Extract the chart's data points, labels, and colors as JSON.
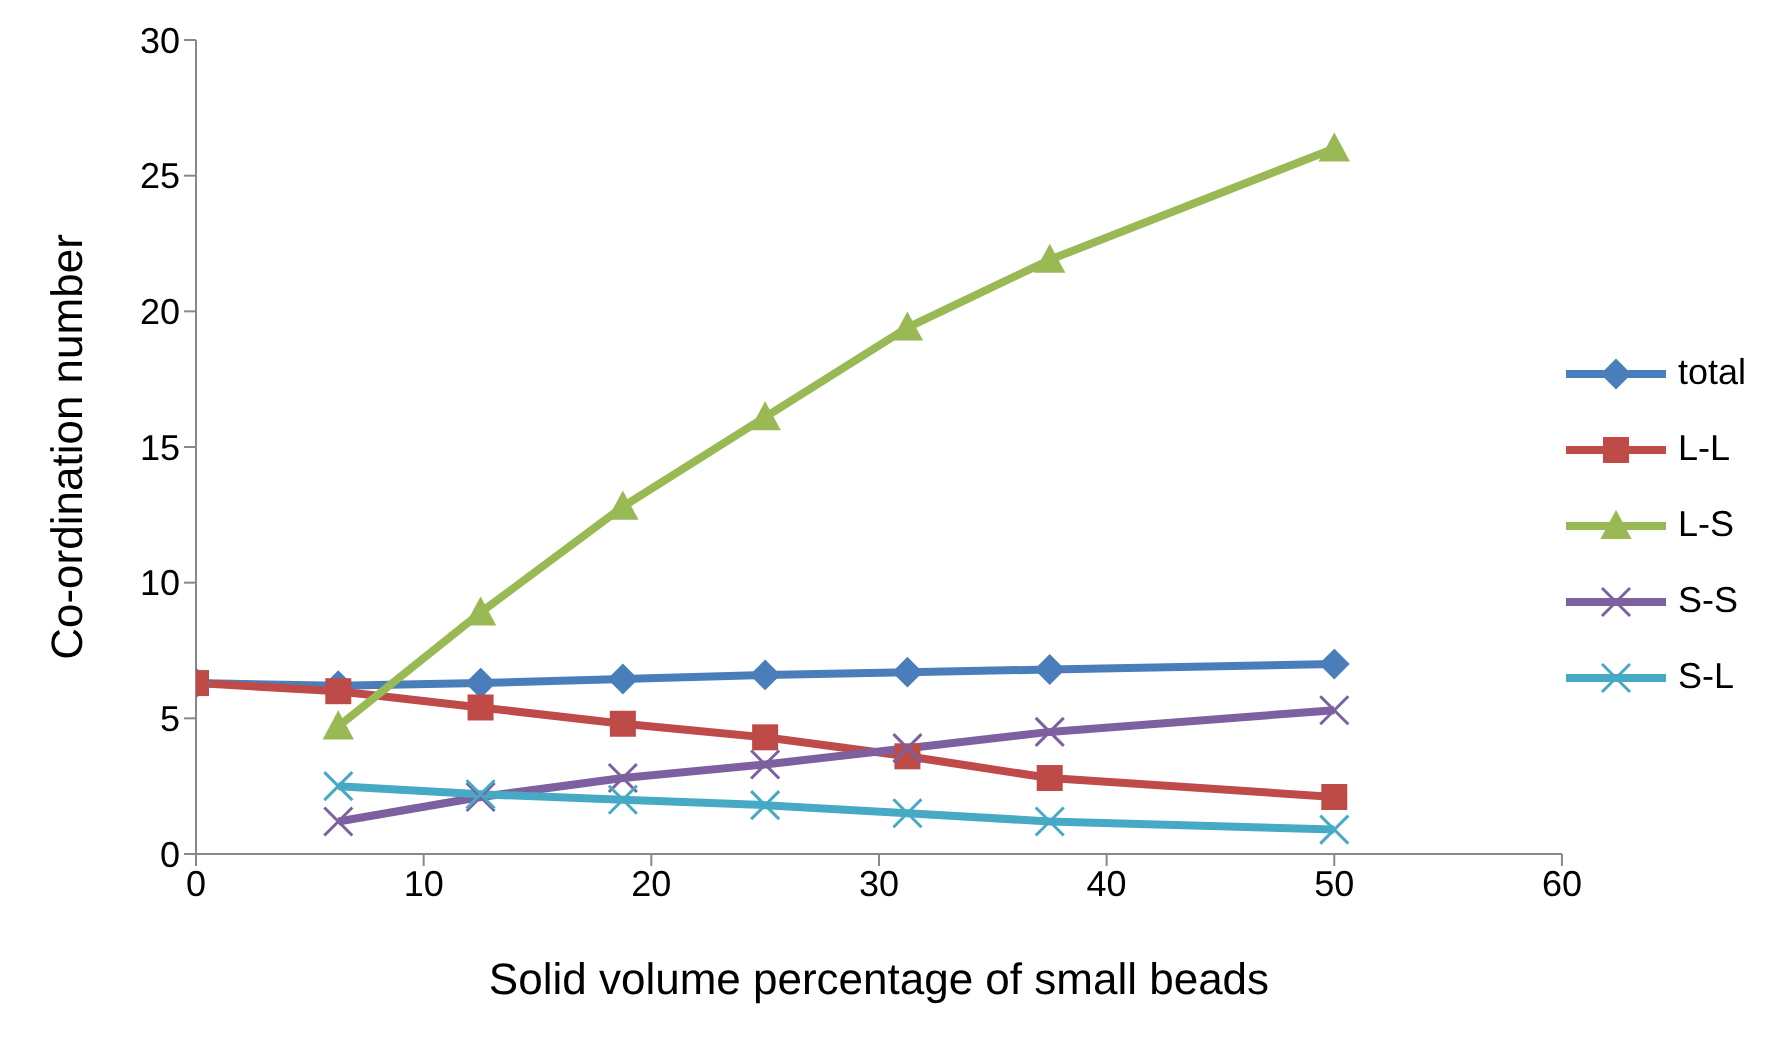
{
  "chart_data": {
    "type": "line",
    "xlabel": "Solid volume percentage of small beads",
    "ylabel": "Co-ordination number",
    "x": [
      0,
      6.25,
      12.5,
      18.75,
      25,
      31.25,
      37.5,
      50
    ],
    "xlim": [
      0,
      60
    ],
    "xticks": [
      0,
      10,
      20,
      30,
      40,
      50,
      60
    ],
    "ylim": [
      0,
      30
    ],
    "yticks": [
      0,
      5,
      10,
      15,
      20,
      25,
      30
    ],
    "grid": false,
    "legend": "right",
    "series": [
      {
        "name": "total",
        "color": "#4a7ebb",
        "marker": "diamond",
        "values": [
          6.3,
          6.2,
          6.3,
          6.45,
          6.6,
          6.7,
          6.8,
          7.0
        ]
      },
      {
        "name": "L-L",
        "color": "#be4b48",
        "marker": "square",
        "values": [
          6.3,
          6.0,
          5.4,
          4.8,
          4.3,
          3.6,
          2.8,
          2.1
        ]
      },
      {
        "name": "L-S",
        "color": "#98b954",
        "marker": "triangle",
        "values": [
          null,
          4.7,
          8.9,
          12.8,
          16.1,
          19.4,
          21.9,
          26.0
        ]
      },
      {
        "name": "S-S",
        "color": "#7d60a0",
        "marker": "cross",
        "values": [
          null,
          1.2,
          2.1,
          2.8,
          3.3,
          3.9,
          4.5,
          5.3
        ]
      },
      {
        "name": "S-L",
        "color": "#46aac5",
        "marker": "cross",
        "values": [
          null,
          2.5,
          2.2,
          2.0,
          1.8,
          1.5,
          1.2,
          0.9
        ]
      }
    ]
  }
}
